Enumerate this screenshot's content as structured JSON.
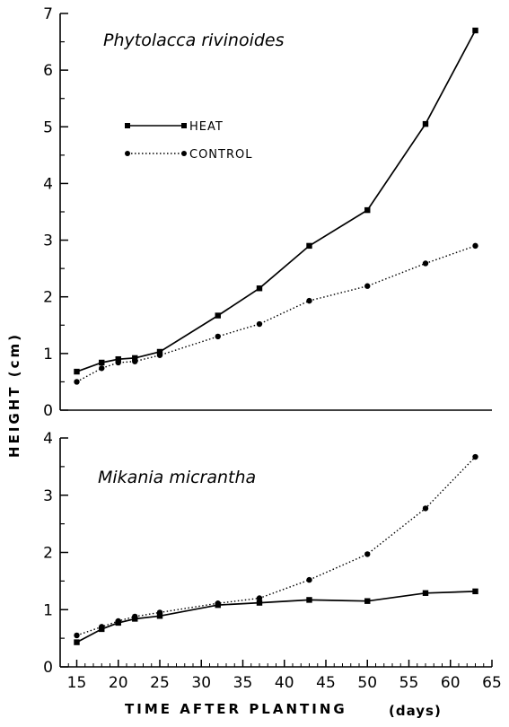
{
  "chart_data": [
    {
      "type": "line",
      "title": "Phytolacca rivinoides",
      "ylim": [
        0,
        7
      ],
      "yticks": [
        "0",
        "1",
        "2",
        "3",
        "4",
        "5",
        "6",
        "7"
      ],
      "legend": [
        "HEAT",
        "CONTROL"
      ],
      "legend_position": "upper-left",
      "series": [
        {
          "name": "HEAT",
          "marker": "square",
          "style": "solid",
          "x": [
            15,
            18,
            20,
            22,
            25,
            32,
            37,
            43,
            50,
            57,
            63
          ],
          "y": [
            0.68,
            0.84,
            0.9,
            0.92,
            1.03,
            1.67,
            2.15,
            2.9,
            3.53,
            5.05,
            6.7
          ]
        },
        {
          "name": "CONTROL",
          "marker": "circle",
          "style": "dotted",
          "x": [
            15,
            18,
            20,
            22,
            25,
            32,
            37,
            43,
            50,
            57,
            63
          ],
          "y": [
            0.5,
            0.74,
            0.84,
            0.86,
            0.97,
            1.3,
            1.52,
            1.93,
            2.19,
            2.59,
            2.9
          ]
        }
      ]
    },
    {
      "type": "line",
      "title": "Mikania micrantha",
      "ylim": [
        0,
        4
      ],
      "yticks": [
        "0",
        "1",
        "2",
        "3",
        "4"
      ],
      "series": [
        {
          "name": "HEAT",
          "marker": "square",
          "style": "solid",
          "x": [
            15,
            18,
            20,
            22,
            25,
            32,
            37,
            43,
            50,
            57,
            63
          ],
          "y": [
            0.43,
            0.66,
            0.77,
            0.84,
            0.89,
            1.08,
            1.12,
            1.17,
            1.15,
            1.29,
            1.32
          ]
        },
        {
          "name": "CONTROL",
          "marker": "circle",
          "style": "dotted",
          "x": [
            15,
            18,
            20,
            22,
            25,
            32,
            37,
            43,
            50,
            57,
            63
          ],
          "y": [
            0.55,
            0.7,
            0.8,
            0.88,
            0.95,
            1.11,
            1.2,
            1.52,
            1.97,
            2.77,
            3.67
          ]
        }
      ]
    }
  ],
  "shared_x_axis": {
    "xlim": [
      13,
      65
    ],
    "xticks": [
      "15",
      "20",
      "25",
      "30",
      "35",
      "40",
      "45",
      "50",
      "55",
      "60",
      "65"
    ],
    "xlabel": "TIME  AFTER  PLANTING",
    "xlabel_unit": "(days)"
  },
  "y_axis_label": "HEIGHT (cm)"
}
